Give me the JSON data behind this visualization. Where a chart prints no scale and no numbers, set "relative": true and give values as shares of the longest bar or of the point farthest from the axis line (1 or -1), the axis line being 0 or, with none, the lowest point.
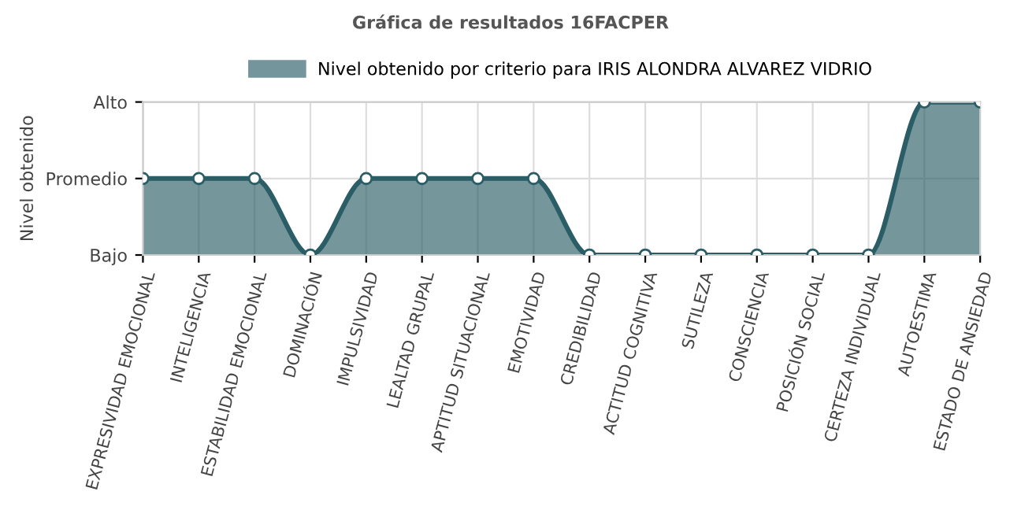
{
  "chart_data": {
    "type": "area",
    "title": "Gráfica de resultados 16FACPER",
    "ylabel": "Nivel obtenido",
    "categories": [
      "EXPRESIVIDAD EMOCIONAL",
      "INTELIGENCIA",
      "ESTABILIDAD EMOCIONAL",
      "DOMINACIÓN",
      "IMPULSIVIDAD",
      "LEALTAD GRUPAL",
      "APTITUD SITUACIONAL",
      "EMOTIVIDAD",
      "CREDIBILIDAD",
      "ACTITUD COGNITIVA",
      "SUTILEZA",
      "CONSCIENCIA",
      "POSICIÓN SOCIAL",
      "CERTEZA INDIVIDUAL",
      "AUTOESTIMA",
      "ESTADO DE ANSIEDAD"
    ],
    "series": [
      {
        "name": "Nivel obtenido por criterio para IRIS ALONDRA ALVAREZ VIDRIO",
        "color": "#2b5d66",
        "values": [
          0.5,
          0.5,
          0.5,
          0,
          0.5,
          0.5,
          0.5,
          0.5,
          0,
          0,
          0,
          0,
          0,
          0,
          1,
          1
        ]
      }
    ],
    "relative": true,
    "annotations": [
      "Bajo",
      "Promedio",
      "Alto"
    ],
    "grid": true,
    "legend": "top",
    "marker": "circle"
  }
}
